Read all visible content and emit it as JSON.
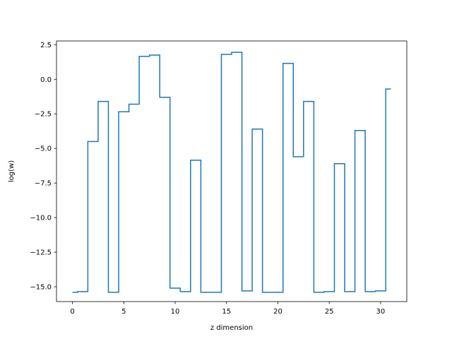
{
  "chart_data": {
    "type": "line",
    "drawstyle": "steps-mid",
    "title": "",
    "xlabel": "z dimension",
    "ylabel": "log(w)",
    "xlim": [
      -1.55,
      32.55
    ],
    "ylim": [
      -16.07,
      2.77
    ],
    "xticks": [
      0,
      5,
      10,
      15,
      20,
      25,
      30
    ],
    "xtick_labels": [
      "0",
      "5",
      "10",
      "15",
      "20",
      "25",
      "30"
    ],
    "yticks": [
      2.5,
      0.0,
      -2.5,
      -5.0,
      -7.5,
      -10.0,
      -12.5,
      -15.0
    ],
    "ytick_labels": [
      "2.5",
      "0.0",
      "−2.5",
      "−5.0",
      "−7.5",
      "−10.0",
      "−12.5",
      "−15.0"
    ],
    "grid": false,
    "legend": "none",
    "series": [
      {
        "color": "#1f77b4",
        "x": [
          0,
          1,
          2,
          3,
          4,
          5,
          6,
          7,
          8,
          9,
          10,
          11,
          12,
          13,
          14,
          15,
          16,
          17,
          18,
          19,
          20,
          21,
          22,
          23,
          24,
          25,
          26,
          27,
          28,
          29,
          30,
          31
        ],
        "values": [
          -15.4,
          -15.35,
          -4.5,
          -1.6,
          -15.4,
          -2.35,
          -1.8,
          1.65,
          1.75,
          -1.3,
          -15.1,
          -15.35,
          -5.85,
          -15.4,
          -15.4,
          1.8,
          1.95,
          -15.3,
          -3.6,
          -15.4,
          -15.4,
          1.15,
          -5.6,
          -1.6,
          -15.4,
          -15.35,
          -6.1,
          -15.35,
          -3.7,
          -15.35,
          -15.3,
          -0.7
        ]
      }
    ]
  }
}
